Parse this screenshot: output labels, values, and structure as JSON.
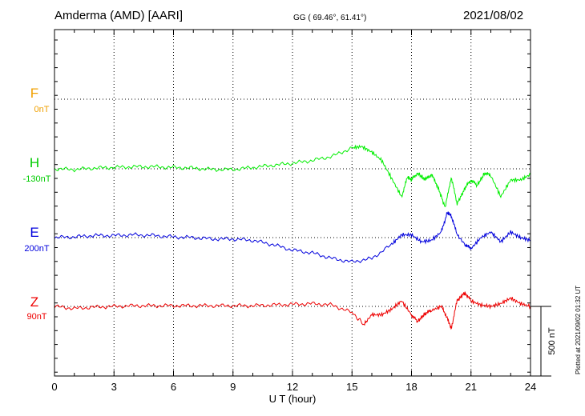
{
  "header": {
    "station": "Amderma (AMD)  [AARI]",
    "coords": "GG ( 69.46°,  61.41°)",
    "date": "2021/08/02"
  },
  "plotted_note": "Plotted at 2021/09/02 01:32 UT",
  "chart_data": {
    "type": "line",
    "xlabel": "U T (hour)",
    "xlim": [
      0,
      24
    ],
    "x_ticks": [
      "0",
      "3",
      "6",
      "9",
      "12",
      "15",
      "18",
      "21",
      "24"
    ],
    "grid": true,
    "scale_bar": {
      "label": "500 nT",
      "value": 500
    },
    "channels": [
      {
        "name": "F",
        "baseline_label": "0nT",
        "color": "#f0a000",
        "values": []
      },
      {
        "name": "H",
        "baseline_label": "-130nT",
        "color": "#00ee00",
        "values": [
          [
            0,
            0
          ],
          [
            1,
            -5
          ],
          [
            2,
            5
          ],
          [
            3,
            10
          ],
          [
            4,
            15
          ],
          [
            5,
            15
          ],
          [
            6,
            10
          ],
          [
            7,
            5
          ],
          [
            8,
            -5
          ],
          [
            9,
            -5
          ],
          [
            10,
            10
          ],
          [
            11,
            25
          ],
          [
            12,
            40
          ],
          [
            13,
            60
          ],
          [
            14,
            90
          ],
          [
            15,
            150
          ],
          [
            15.5,
            160
          ],
          [
            16,
            120
          ],
          [
            16.5,
            60
          ],
          [
            17,
            -70
          ],
          [
            17.5,
            -200
          ],
          [
            17.8,
            -60
          ],
          [
            18,
            -80
          ],
          [
            18.3,
            -30
          ],
          [
            18.7,
            -80
          ],
          [
            19,
            -40
          ],
          [
            19.3,
            -120
          ],
          [
            19.7,
            -280
          ],
          [
            20,
            -60
          ],
          [
            20.3,
            -250
          ],
          [
            20.7,
            -140
          ],
          [
            21,
            -80
          ],
          [
            21.3,
            -120
          ],
          [
            21.7,
            -30
          ],
          [
            22,
            -50
          ],
          [
            22.5,
            -200
          ],
          [
            23,
            -80
          ],
          [
            23.5,
            -80
          ],
          [
            24,
            -40
          ]
        ]
      },
      {
        "name": "E",
        "baseline_label": "200nT",
        "color": "#0000dd",
        "values": [
          [
            0,
            0
          ],
          [
            1,
            5
          ],
          [
            2,
            15
          ],
          [
            3,
            15
          ],
          [
            4,
            20
          ],
          [
            5,
            15
          ],
          [
            6,
            5
          ],
          [
            7,
            0
          ],
          [
            8,
            -10
          ],
          [
            9,
            -10
          ],
          [
            10,
            -20
          ],
          [
            11,
            -50
          ],
          [
            12,
            -90
          ],
          [
            13,
            -110
          ],
          [
            14,
            -150
          ],
          [
            15,
            -175
          ],
          [
            16,
            -150
          ],
          [
            17,
            -50
          ],
          [
            17.5,
            20
          ],
          [
            18,
            20
          ],
          [
            18.5,
            -30
          ],
          [
            19,
            -20
          ],
          [
            19.5,
            40
          ],
          [
            19.8,
            180
          ],
          [
            20,
            160
          ],
          [
            20.3,
            20
          ],
          [
            20.7,
            -50
          ],
          [
            21,
            -80
          ],
          [
            21.5,
            0
          ],
          [
            22,
            40
          ],
          [
            22.5,
            -30
          ],
          [
            23,
            40
          ],
          [
            23.5,
            0
          ],
          [
            24,
            -20
          ]
        ]
      },
      {
        "name": "Z",
        "baseline_label": "90nT",
        "color": "#ee0000",
        "values": [
          [
            0,
            0
          ],
          [
            1,
            -15
          ],
          [
            2,
            -5
          ],
          [
            3,
            0
          ],
          [
            4,
            5
          ],
          [
            5,
            5
          ],
          [
            6,
            5
          ],
          [
            7,
            5
          ],
          [
            8,
            5
          ],
          [
            9,
            5
          ],
          [
            10,
            5
          ],
          [
            11,
            10
          ],
          [
            12,
            15
          ],
          [
            13,
            20
          ],
          [
            14,
            10
          ],
          [
            15,
            -45
          ],
          [
            15.6,
            -130
          ],
          [
            16,
            -60
          ],
          [
            16.5,
            -60
          ],
          [
            17,
            -20
          ],
          [
            17.5,
            40
          ],
          [
            18,
            -60
          ],
          [
            18.3,
            -110
          ],
          [
            18.7,
            -50
          ],
          [
            19,
            -30
          ],
          [
            19.5,
            0
          ],
          [
            19.8,
            -80
          ],
          [
            20,
            -160
          ],
          [
            20.3,
            40
          ],
          [
            20.7,
            100
          ],
          [
            21,
            40
          ],
          [
            21.5,
            10
          ],
          [
            22,
            0
          ],
          [
            22.5,
            20
          ],
          [
            23,
            60
          ],
          [
            23.5,
            20
          ],
          [
            24,
            0
          ]
        ]
      }
    ]
  }
}
